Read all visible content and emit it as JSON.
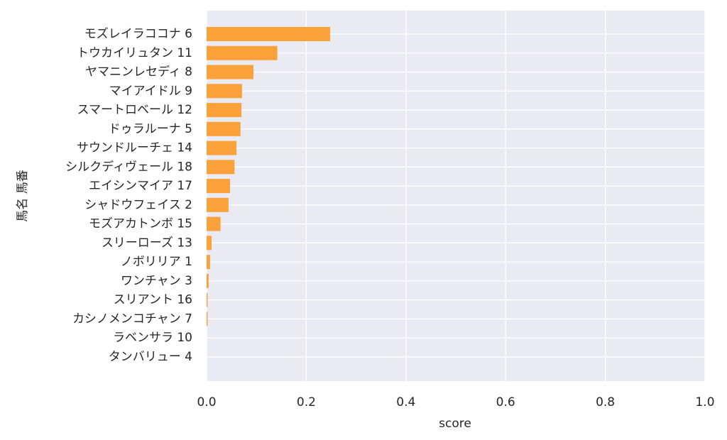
{
  "chart_data": {
    "type": "barh",
    "x_label": "score",
    "y_label": "馬名 馬番",
    "categories": [
      "モズレイラココナ 6",
      "トウカイリュタン 11",
      "ヤマニンレセディ 8",
      "マイアイドル 9",
      "スマートロベール 12",
      "ドゥラルーナ 5",
      "サウンドルーチェ 14",
      "シルクディヴェール 18",
      "エイシンマイア 17",
      "シャドウフェイス 2",
      "モズアカトンボ 15",
      "スリーローズ 13",
      "ノボリリア 1",
      "ワンチャン 3",
      "スリアント 16",
      "カシノメンコチャン 7",
      "ラベンサラ 10",
      "タンバリュー 4"
    ],
    "values": [
      0.248,
      0.142,
      0.094,
      0.071,
      0.07,
      0.068,
      0.06,
      0.056,
      0.047,
      0.044,
      0.028,
      0.01,
      0.007,
      0.004,
      0.002,
      0.002,
      0,
      0
    ],
    "color": "#fba13a",
    "xlim": [
      0,
      1
    ],
    "xticks": [
      {
        "value": 0,
        "label": "0.0"
      },
      0.2,
      0.4,
      0.6,
      0.8,
      {
        "value": 1,
        "label": "1.0"
      }
    ],
    "grid": true
  }
}
